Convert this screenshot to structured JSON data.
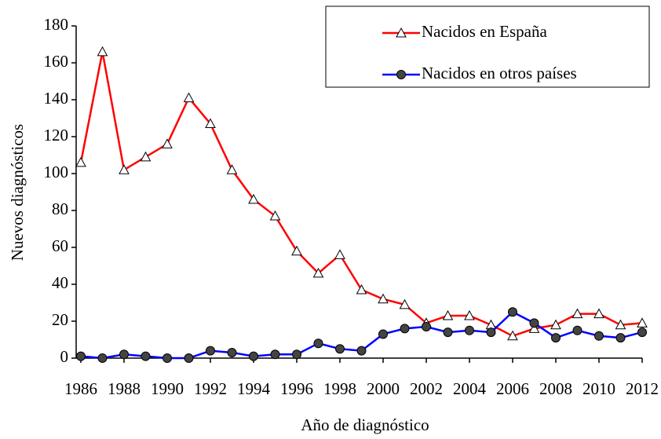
{
  "chart_data": {
    "type": "line",
    "x_label": "Año de diagnóstico",
    "y_label": "Nuevos diagnósticos",
    "x": [
      1986,
      1987,
      1988,
      1989,
      1990,
      1991,
      1992,
      1993,
      1994,
      1995,
      1996,
      1997,
      1998,
      1999,
      2000,
      2001,
      2002,
      2003,
      2004,
      2005,
      2006,
      2007,
      2008,
      2009,
      2010,
      2011,
      2012
    ],
    "series": [
      {
        "name": "Nacidos en España",
        "color": "#ff0000",
        "marker": "triangle",
        "values": [
          106,
          166,
          102,
          109,
          116,
          141,
          127,
          102,
          86,
          77,
          58,
          46,
          56,
          37,
          32,
          29,
          19,
          23,
          23,
          18,
          12,
          16,
          18,
          24,
          24,
          18,
          19
        ]
      },
      {
        "name": "Nacidos en otros países",
        "color": "#0000ff",
        "marker": "circle",
        "values": [
          1,
          0,
          2,
          1,
          0,
          0,
          4,
          3,
          1,
          2,
          2,
          8,
          5,
          4,
          13,
          16,
          17,
          14,
          15,
          14,
          25,
          19,
          11,
          15,
          12,
          11,
          14
        ]
      }
    ],
    "xlim": [
      1986,
      2012
    ],
    "xticks": [
      1986,
      1988,
      1990,
      1992,
      1994,
      1996,
      1998,
      2000,
      2002,
      2004,
      2006,
      2008,
      2010,
      2012
    ],
    "ylim": [
      0,
      180
    ],
    "yticks": [
      0,
      20,
      40,
      60,
      80,
      100,
      120,
      140,
      160,
      180
    ],
    "legend": "top-right"
  }
}
